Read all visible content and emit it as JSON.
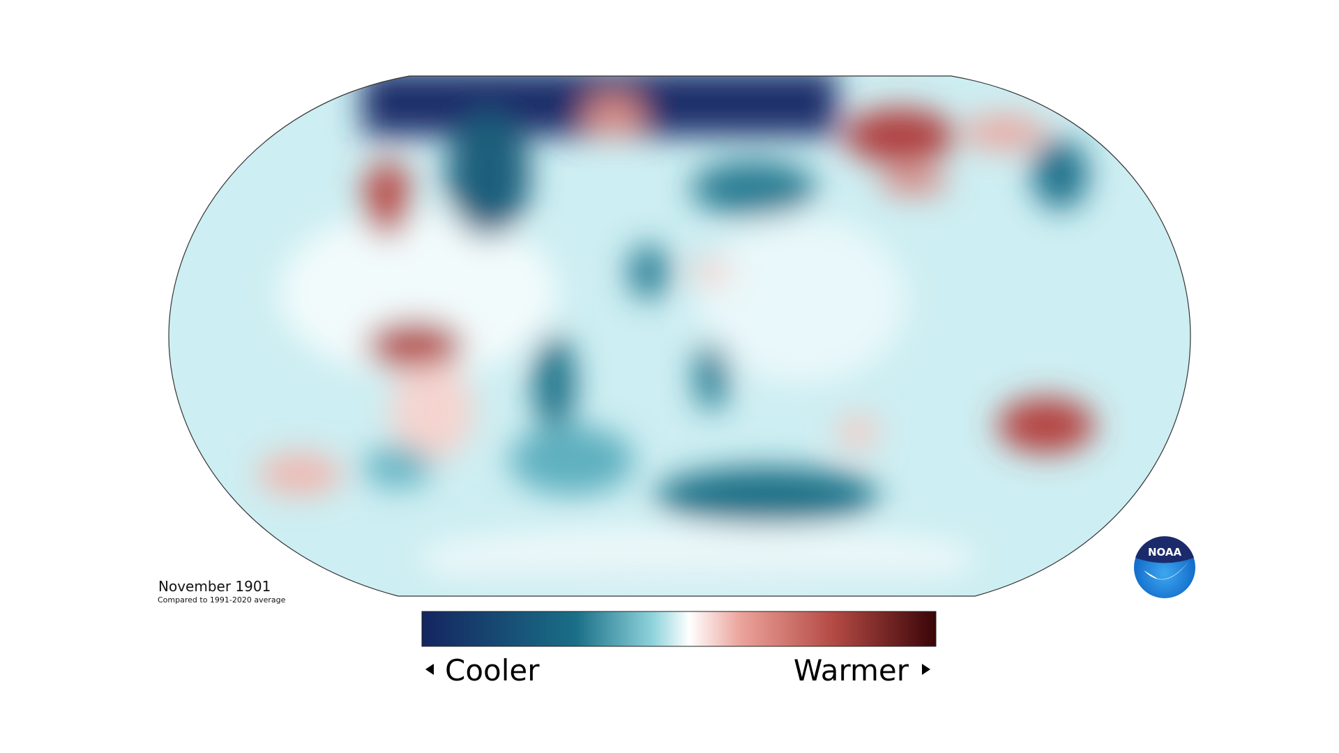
{
  "map": {
    "date": "November 1901",
    "baseline": "Compared to 1991-2020 average"
  },
  "legend": {
    "low": "Cooler",
    "high": "Warmer"
  },
  "logo": "NOAA"
}
